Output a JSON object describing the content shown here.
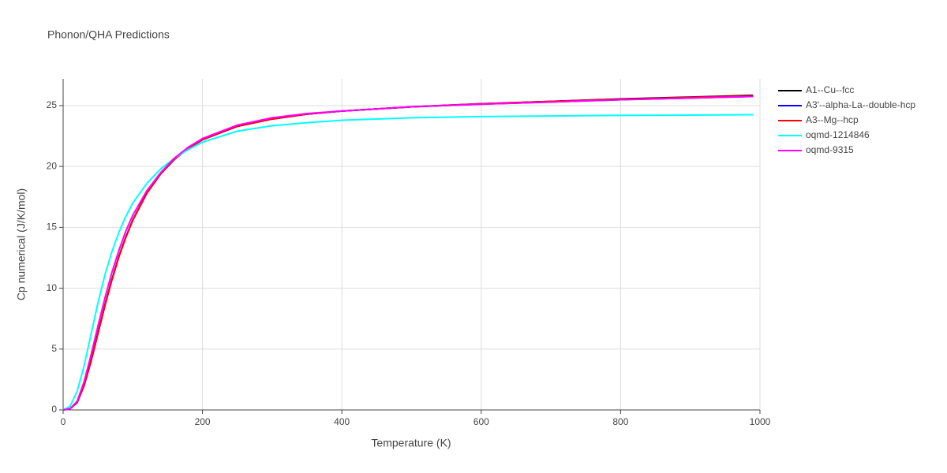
{
  "chart_data": {
    "type": "line",
    "title": "Phonon/QHA Predictions",
    "x_label": "Temperature (K)",
    "y_label": "Cp numerical (J/K/mol)",
    "x": [
      0,
      10,
      20,
      30,
      40,
      50,
      60,
      70,
      80,
      90,
      100,
      120,
      140,
      160,
      180,
      200,
      250,
      300,
      350,
      400,
      500,
      600,
      700,
      800,
      900,
      990
    ],
    "series": [
      {
        "name": "A1--Cu--fcc",
        "color": "#000000",
        "values": [
          0,
          0.1,
          0.6,
          2.0,
          4.0,
          6.3,
          8.6,
          10.7,
          12.6,
          14.2,
          15.6,
          17.8,
          19.4,
          20.6,
          21.5,
          22.2,
          23.3,
          23.9,
          24.3,
          24.55,
          24.9,
          25.15,
          25.35,
          25.55,
          25.7,
          25.85
        ]
      },
      {
        "name": "A3'--alpha-La--double-hcp",
        "color": "#0000ff",
        "values": [
          0,
          0.1,
          0.6,
          2.0,
          4.0,
          6.3,
          8.6,
          10.7,
          12.6,
          14.2,
          15.6,
          17.8,
          19.4,
          20.6,
          21.5,
          22.2,
          23.3,
          23.9,
          24.3,
          24.55,
          24.9,
          25.12,
          25.3,
          25.48,
          25.62,
          25.75
        ]
      },
      {
        "name": "A3--Mg--hcp",
        "color": "#ff0000",
        "values": [
          0,
          0.1,
          0.6,
          2.0,
          4.0,
          6.3,
          8.6,
          10.7,
          12.6,
          14.2,
          15.6,
          17.8,
          19.4,
          20.6,
          21.5,
          22.2,
          23.3,
          23.9,
          24.3,
          24.55,
          24.9,
          25.15,
          25.35,
          25.52,
          25.68,
          25.8
        ]
      },
      {
        "name": "oqmd-1214846",
        "color": "#00ffff",
        "values": [
          0,
          0.3,
          1.5,
          3.6,
          6.2,
          8.8,
          11.1,
          13.0,
          14.6,
          15.9,
          17.0,
          18.6,
          19.8,
          20.7,
          21.4,
          22.0,
          22.9,
          23.35,
          23.6,
          23.8,
          24.0,
          24.1,
          24.15,
          24.2,
          24.22,
          24.25
        ]
      },
      {
        "name": "oqmd-9315",
        "color": "#ff00ff",
        "values": [
          0,
          0.1,
          0.7,
          2.3,
          4.5,
          6.9,
          9.2,
          11.3,
          13.1,
          14.7,
          16.0,
          18.0,
          19.5,
          20.7,
          21.6,
          22.3,
          23.4,
          24.0,
          24.35,
          24.55,
          24.9,
          25.12,
          25.3,
          25.48,
          25.62,
          25.75
        ]
      }
    ],
    "xlim": [
      0,
      1000
    ],
    "xticks": [
      0,
      200,
      400,
      600,
      800,
      1000
    ],
    "ylim": [
      0,
      27.2
    ],
    "yticks": [
      0,
      5,
      10,
      15,
      20,
      25
    ],
    "grid": true,
    "legend": "right"
  }
}
